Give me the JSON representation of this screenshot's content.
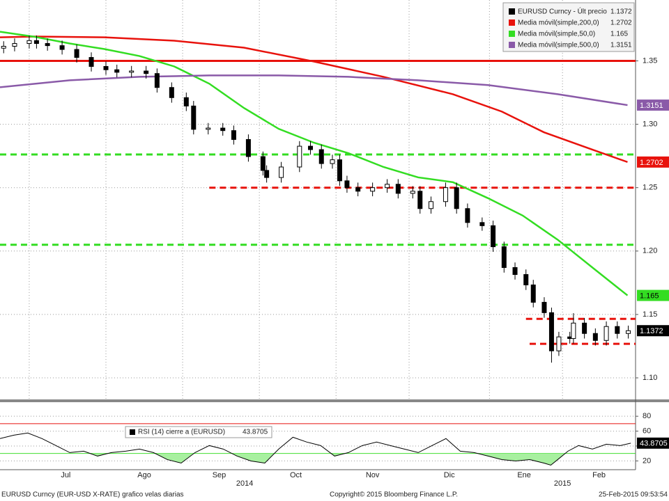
{
  "chart_data": [
    {
      "type": "candlestick",
      "name": "EURUSD Curncy - Últ precio",
      "last_value": 1.1372,
      "color": "#000000",
      "x": [
        1,
        4,
        8,
        10,
        13,
        17,
        21,
        25,
        29,
        32,
        36,
        40,
        43,
        47,
        51,
        53,
        57,
        61,
        64,
        68,
        72,
        73,
        77,
        82,
        85,
        88,
        91,
        93,
        95,
        98,
        102,
        106,
        109,
        113,
        115,
        118,
        122,
        125,
        128,
        132,
        135,
        138,
        141,
        144,
        146,
        149,
        151,
        153,
        156,
        157,
        160,
        163,
        166,
        169,
        172
      ],
      "open": [
        1.36,
        1.3615,
        1.3637,
        1.366,
        1.3637,
        1.362,
        1.359,
        1.3527,
        1.3456,
        1.343,
        1.341,
        1.342,
        1.34,
        1.329,
        1.321,
        1.3144,
        1.296,
        1.297,
        1.295,
        1.288,
        1.2745,
        1.2636,
        1.258,
        1.2663,
        1.2827,
        1.28,
        1.269,
        1.272,
        1.2554,
        1.25,
        1.2472,
        1.25,
        1.2527,
        1.2455,
        1.2472,
        1.2335,
        1.239,
        1.25,
        1.2335,
        1.2225,
        1.22,
        1.2034,
        1.187,
        1.1815,
        1.1733,
        1.1596,
        1.1514,
        1.1213,
        1.1323,
        1.131,
        1.1432,
        1.135,
        1.1295,
        1.1405,
        1.135
      ],
      "high": [
        1.3655,
        1.3677,
        1.37,
        1.37,
        1.3677,
        1.366,
        1.363,
        1.3567,
        1.3496,
        1.347,
        1.346,
        1.346,
        1.344,
        1.333,
        1.325,
        1.3184,
        1.301,
        1.301,
        1.299,
        1.292,
        1.2785,
        1.2676,
        1.2703,
        1.2867,
        1.2867,
        1.284,
        1.276,
        1.276,
        1.2594,
        1.254,
        1.254,
        1.2567,
        1.2567,
        1.2512,
        1.2512,
        1.243,
        1.254,
        1.254,
        1.2375,
        1.2265,
        1.224,
        1.2074,
        1.191,
        1.1855,
        1.1773,
        1.1636,
        1.1554,
        1.1363,
        1.1363,
        1.151,
        1.1472,
        1.139,
        1.1445,
        1.1445,
        1.1412
      ],
      "low": [
        1.356,
        1.3575,
        1.3597,
        1.3597,
        1.358,
        1.355,
        1.3487,
        1.3416,
        1.339,
        1.337,
        1.337,
        1.336,
        1.325,
        1.317,
        1.3104,
        1.292,
        1.292,
        1.291,
        1.284,
        1.2705,
        1.2596,
        1.254,
        1.254,
        1.2623,
        1.276,
        1.265,
        1.265,
        1.2514,
        1.246,
        1.2432,
        1.2432,
        1.246,
        1.2415,
        1.2415,
        1.2295,
        1.2295,
        1.235,
        1.2295,
        1.2185,
        1.216,
        1.1994,
        1.183,
        1.1775,
        1.1693,
        1.1556,
        1.1474,
        1.112,
        1.1173,
        1.127,
        1.127,
        1.131,
        1.1255,
        1.1255,
        1.131,
        1.131
      ],
      "close": [
        1.3615,
        1.3637,
        1.366,
        1.3637,
        1.362,
        1.359,
        1.3527,
        1.3456,
        1.343,
        1.341,
        1.342,
        1.34,
        1.329,
        1.321,
        1.3144,
        1.296,
        1.297,
        1.295,
        1.288,
        1.2745,
        1.2636,
        1.258,
        1.2663,
        1.2827,
        1.28,
        1.269,
        1.272,
        1.2554,
        1.25,
        1.2472,
        1.25,
        1.2527,
        1.2455,
        1.2472,
        1.2335,
        1.239,
        1.25,
        1.2335,
        1.2225,
        1.22,
        1.2034,
        1.187,
        1.1815,
        1.1733,
        1.1596,
        1.1514,
        1.1213,
        1.1323,
        1.131,
        1.1432,
        1.135,
        1.1295,
        1.1405,
        1.135,
        1.1372
      ],
      "overlays": [
        {
          "name": "Media móvil(simple,200,0)",
          "last_value": 1.2702,
          "color": "#e8120c",
          "x": [
            0,
            9.5,
            28.6,
            47.7,
            66.8,
            85.9,
            105,
            124,
            137.4,
            148.9,
            162.2,
            171.8
          ],
          "values": [
            1.3686,
            1.3692,
            1.3686,
            1.3659,
            1.3604,
            1.3495,
            1.3374,
            1.3237,
            1.31,
            1.2937,
            1.28,
            1.2702
          ]
        },
        {
          "name": "Media móvil(simple,50,0)",
          "last_value": 1.165,
          "color": "#33dd22",
          "x": [
            0,
            9.5,
            19.1,
            28.6,
            38.2,
            47.7,
            57.3,
            66.8,
            76.3,
            85.9,
            95.4,
            105,
            114.5,
            124,
            133.6,
            143.1,
            152.7,
            162.2,
            171.8
          ],
          "values": [
            1.373,
            1.369,
            1.3637,
            1.3593,
            1.3538,
            1.3456,
            1.332,
            1.3128,
            1.2964,
            1.2855,
            1.2772,
            1.2663,
            1.2581,
            1.2543,
            1.2417,
            1.228,
            1.2089,
            1.187,
            1.165
          ]
        },
        {
          "name": "Media móvil(simple,500,0)",
          "last_value": 1.3151,
          "color": "#8a5aa8",
          "x": [
            0,
            19.1,
            38.2,
            57.3,
            76.3,
            95.4,
            114.5,
            133.6,
            152.7,
            171.8
          ],
          "values": [
            1.3292,
            1.3347,
            1.3374,
            1.3385,
            1.3385,
            1.3374,
            1.3347,
            1.3309,
            1.3237,
            1.3151
          ]
        }
      ],
      "levels": [
        {
          "value": 1.35,
          "color": "#e8120c",
          "style": "solid",
          "from": 0
        },
        {
          "value": 1.2762,
          "color": "#33dd22",
          "style": "dashed",
          "from": 0
        },
        {
          "value": 1.205,
          "color": "#33dd22",
          "style": "dashed",
          "from": 0
        },
        {
          "value": 1.25,
          "color": "#e8120c",
          "style": "dashed",
          "from": 57.3
        },
        {
          "value": 1.1465,
          "color": "#e8120c",
          "style": "dashed",
          "from": 144
        },
        {
          "value": 1.1268,
          "color": "#e8120c",
          "style": "dashed",
          "from": 145
        }
      ],
      "xlim": [
        0,
        174
      ],
      "ylim": [
        1.083,
        1.398
      ],
      "yticks": [
        {
          "value": 1.1,
          "label": "1.10"
        },
        1.15,
        {
          "value": 1.2,
          "label": "1.20"
        },
        1.25,
        {
          "value": 1.3,
          "label": "1.30"
        },
        1.35
      ],
      "xticks": [
        {
          "value": 18,
          "label": "Jul"
        },
        {
          "value": 39.5,
          "label": "Ago"
        },
        {
          "value": 60,
          "label": "Sep"
        },
        {
          "value": 81,
          "label": "Oct"
        },
        {
          "value": 102,
          "label": "Nov"
        },
        {
          "value": 123,
          "label": "Dic"
        },
        {
          "value": 143.5,
          "label": "Ene"
        },
        {
          "value": 164,
          "label": "Feb"
        }
      ],
      "year_ticks": [
        {
          "value": 67,
          "label": "2014"
        },
        {
          "value": 154,
          "label": "2015"
        }
      ],
      "xgrid": [
        8,
        29,
        50,
        71,
        92,
        112,
        134,
        154
      ],
      "grid": true
    },
    {
      "type": "line",
      "title": "RSI (14) cierre a (EURUSD)",
      "last_value": 43.8705,
      "color": "#000000",
      "x": [
        0,
        3.8,
        7.6,
        11.5,
        15.3,
        19.1,
        22.9,
        26.7,
        30.5,
        34.4,
        38.2,
        42,
        45.8,
        49.6,
        53.4,
        57.3,
        61.1,
        64.9,
        68.7,
        72.5,
        76.3,
        80.2,
        84,
        87.8,
        91.6,
        95.4,
        99.2,
        103.1,
        106.9,
        110.7,
        114.5,
        118.3,
        122.1,
        126,
        129.8,
        133.6,
        137.4,
        141.2,
        145,
        148.9,
        150.8,
        152.7,
        155.5,
        158.4,
        162.2,
        166,
        169.8,
        172.7
      ],
      "values": [
        50,
        54.6,
        57.5,
        50,
        40.6,
        31.2,
        33.1,
        26.5,
        31.2,
        33.1,
        35.9,
        31.2,
        21.8,
        17.1,
        31.2,
        40.6,
        35.9,
        26.5,
        19.9,
        17.1,
        35.9,
        51.8,
        45.3,
        40.6,
        26.5,
        31.2,
        40.6,
        45.3,
        40.6,
        35.9,
        31.2,
        40.6,
        50,
        33.1,
        31.2,
        26.5,
        21.8,
        19.9,
        21.8,
        17.1,
        14.3,
        21.8,
        33.1,
        40.6,
        35.9,
        42.4,
        40.6,
        43.8705
      ],
      "levels": [
        {
          "value": 70,
          "color": "#e8120c",
          "style": "solid",
          "from": 0
        },
        {
          "value": 30,
          "color": "#33dd22",
          "style": "solid",
          "from": 0
        }
      ],
      "fill_below": 30,
      "fill_color": "#a8f0a0",
      "xlim": [
        0,
        174
      ],
      "ylim": [
        11,
        97
      ],
      "yticks": [
        20,
        40,
        60,
        80
      ],
      "grid": true
    }
  ],
  "footer": {
    "left": "EURUSD Curncy (EUR-USD X-RATE) grafico velas diarias",
    "center": "Copyright© 2015 Bloomberg Finance L.P.",
    "right": "25-Feb-2015 09:53:54"
  }
}
